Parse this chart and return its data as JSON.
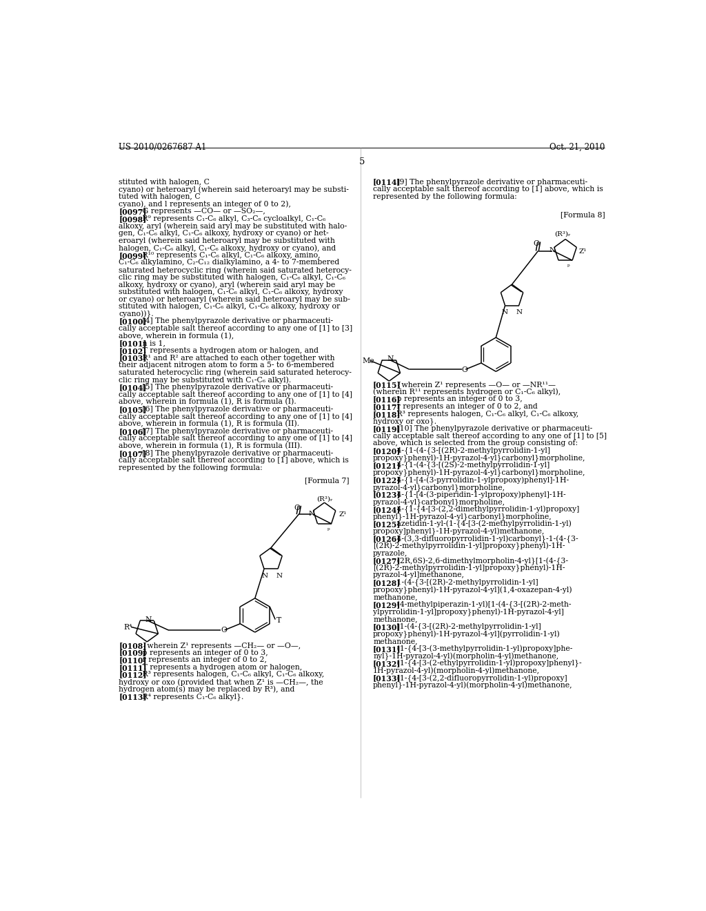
{
  "background_color": "#ffffff",
  "page_number": "5",
  "header_left": "US 2010/0267687 A1",
  "header_right": "Oct. 21, 2010",
  "left_column_lines": [
    {
      "text": "stituted with halogen, C",
      "bold": false,
      "indent": 0
    },
    {
      "text": "cyano) or heteroaryl (wherein said heteroaryl may be substi-",
      "bold": false,
      "indent": 0
    },
    {
      "text": "tuted with halogen, C",
      "bold": false,
      "indent": 0
    },
    {
      "text": "cyano), and l represents an integer of 0 to 2),",
      "bold": false,
      "indent": 0
    },
    {
      "text": "[0097]",
      "bold": true,
      "indent": 0,
      "rest": "   G represents —CO— or —SO₂—,"
    },
    {
      "text": "[0098]",
      "bold": true,
      "indent": 0,
      "rest": "   R⁹ represents C₁-C₆ alkyl, C₃-C₈ cycloalkyl, C₁-C₆"
    },
    {
      "text": "alkoxy, aryl (wherein said aryl may be substituted with halo-",
      "bold": false,
      "indent": 0
    },
    {
      "text": "gen, C₁-C₆ alkyl, C₁-C₆ alkoxy, hydroxy or cyano) or het-",
      "bold": false,
      "indent": 0
    },
    {
      "text": "eroaryl (wherein said heteroaryl may be substituted with",
      "bold": false,
      "indent": 0
    },
    {
      "text": "halogen, C₁-C₆ alkyl, C₁-C₆ alkoxy, hydroxy or cyano), and",
      "bold": false,
      "indent": 0
    },
    {
      "text": "[0099]",
      "bold": true,
      "indent": 0,
      "rest": "   R¹⁰ represents C₁-C₆ alkyl, C₁-C₆ alkoxy, amino,"
    },
    {
      "text": "C₁-C₆ alkylamino, C₂-C₁₂ dialkylamino, a 4- to 7-membered",
      "bold": false,
      "indent": 0
    },
    {
      "text": "saturated heterocyclic ring (wherein said saturated heterocy-",
      "bold": false,
      "indent": 0
    },
    {
      "text": "clic ring may be substituted with halogen, C₁-C₆ alkyl, C₁-C₆",
      "bold": false,
      "indent": 0
    },
    {
      "text": "alkoxy, hydroxy or cyano), aryl (wherein said aryl may be",
      "bold": false,
      "indent": 0
    },
    {
      "text": "substituted with halogen, C₁-C₆ alkyl, C₁-C₆ alkoxy, hydroxy",
      "bold": false,
      "indent": 0
    },
    {
      "text": "or cyano) or heteroaryl (wherein said heteroaryl may be sub-",
      "bold": false,
      "indent": 0
    },
    {
      "text": "stituted with halogen, C₁-C₆ alkyl, C₁-C₆ alkoxy, hydroxy or",
      "bold": false,
      "indent": 0
    },
    {
      "text": "cyano))}.",
      "bold": false,
      "indent": 0
    },
    {
      "text": "[0100]",
      "bold": true,
      "indent": 0,
      "rest": "   [4] The phenylpyrazole derivative or pharmaceuti-"
    },
    {
      "text": "cally acceptable salt thereof according to any one of [1] to [3]",
      "bold": false,
      "indent": 0
    },
    {
      "text": "above, wherein in formula (1),",
      "bold": false,
      "indent": 0
    },
    {
      "text": "[0101]",
      "bold": true,
      "indent": 0,
      "rest": "   n is 1,"
    },
    {
      "text": "[0102]",
      "bold": true,
      "indent": 0,
      "rest": "   T represents a hydrogen atom or halogen, and"
    },
    {
      "text": "[0103]",
      "bold": true,
      "indent": 0,
      "rest": "   R¹ and R² are attached to each other together with"
    },
    {
      "text": "their adjacent nitrogen atom to form a 5- to 6-membered",
      "bold": false,
      "indent": 0
    },
    {
      "text": "saturated heterocyclic ring (wherein said saturated heterocy-",
      "bold": false,
      "indent": 0
    },
    {
      "text": "clic ring may be substituted with C₁-C₆ alkyl).",
      "bold": false,
      "indent": 0
    },
    {
      "text": "[0104]",
      "bold": true,
      "indent": 0,
      "rest": "   [5] The phenylpyrazole derivative or pharmaceuti-"
    },
    {
      "text": "cally acceptable salt thereof according to any one of [1] to [4]",
      "bold": false,
      "indent": 0
    },
    {
      "text": "above, wherein in formula (1), R is formula (I).",
      "bold": false,
      "indent": 0
    },
    {
      "text": "[0105]",
      "bold": true,
      "indent": 0,
      "rest": "   [6] The phenylpyrazole derivative or pharmaceuti-"
    },
    {
      "text": "cally acceptable salt thereof according to any one of [1] to [4]",
      "bold": false,
      "indent": 0
    },
    {
      "text": "above, wherein in formula (1), R is formula (II).",
      "bold": false,
      "indent": 0
    },
    {
      "text": "[0106]",
      "bold": true,
      "indent": 0,
      "rest": "   [7] The phenylpyrazole derivative or pharmaceuti-"
    },
    {
      "text": "cally acceptable salt thereof according to any one of [1] to [4]",
      "bold": false,
      "indent": 0
    },
    {
      "text": "above, wherein in formula (1), R is formula (III).",
      "bold": false,
      "indent": 0
    },
    {
      "text": "[0107]",
      "bold": true,
      "indent": 0,
      "rest": "   [8] The phenylpyrazole derivative or pharmaceuti-"
    },
    {
      "text": "cally acceptable salt thereof according to [1] above, which is",
      "bold": false,
      "indent": 0
    },
    {
      "text": "represented by the following formula:",
      "bold": false,
      "indent": 0
    }
  ],
  "left_col_extra_lines": [
    {
      "text": "[0108]",
      "bold": true,
      "rest": "   {wherein Z¹ represents —CH₂— or —O—,"
    },
    {
      "text": "[0109]",
      "bold": true,
      "rest": "   p represents an integer of 0 to 3,"
    },
    {
      "text": "[0110]",
      "bold": true,
      "rest": "   r represents an integer of 0 to 2,"
    },
    {
      "text": "[0111]",
      "bold": true,
      "rest": "   T represents a hydrogen atom or halogen,"
    },
    {
      "text": "[0112]",
      "bold": true,
      "rest": "   R³ represents halogen, C₁-C₆ alkyl, C₁-C₆ alkoxy,"
    },
    {
      "text": "hydroxy or oxo (provided that when Z¹ is —CH₂—, the",
      "bold": false,
      "rest": ""
    },
    {
      "text": "hydrogen atom(s) may be replaced by R³), and",
      "bold": false,
      "rest": ""
    },
    {
      "text": "[0113]",
      "bold": true,
      "rest": "   R⁴ represents C₁-C₆ alkyl}."
    }
  ],
  "right_col_top_lines": [
    {
      "text": "[0114]",
      "bold": true,
      "rest": "   [9] The phenylpyrazole derivative or pharmaceuti-"
    },
    {
      "text": "cally acceptable salt thereof according to [1] above, which is",
      "bold": false,
      "rest": ""
    },
    {
      "text": "represented by the following formula:",
      "bold": false,
      "rest": ""
    }
  ],
  "right_col_bottom_lines": [
    {
      "text": "[0115]",
      "bold": true,
      "rest": "   {wherein Z¹ represents —O— or —NR¹¹—"
    },
    {
      "text": "(wherein R¹¹ represents hydrogen or C₁-C₆ alkyl),",
      "bold": false,
      "rest": ""
    },
    {
      "text": "[0116]",
      "bold": true,
      "rest": "   p represents an integer of 0 to 3,"
    },
    {
      "text": "[0117]",
      "bold": true,
      "rest": "   r represents an integer of 0 to 2, and"
    },
    {
      "text": "[0118]",
      "bold": true,
      "rest": "   R³ represents halogen, C₁-C₆ alkyl, C₁-C₆ alkoxy,"
    },
    {
      "text": "hydroxy or oxo}.",
      "bold": false,
      "rest": ""
    },
    {
      "text": "[0119]",
      "bold": true,
      "rest": "   [10] The phenylpyrazole derivative or pharmaceuti-"
    },
    {
      "text": "cally acceptable salt thereof according to any one of [1] to [5]",
      "bold": false,
      "rest": ""
    },
    {
      "text": "above, which is selected from the group consisting of:",
      "bold": false,
      "rest": ""
    },
    {
      "text": "[0120]",
      "bold": true,
      "rest": "   4-{1-(4-{3-[(2R)-2-methylpyrrolidin-1-yl]"
    },
    {
      "text": "propoxy}phenyl)-1H-pyrazol-4-yl}carbonyl}morpholine,",
      "bold": false,
      "rest": ""
    },
    {
      "text": "[0121]",
      "bold": true,
      "rest": "   4-{1-(4-{3-[(2S)-2-methylpyrrolidin-1-yl]"
    },
    {
      "text": "propoxy}phenyl)-1H-pyrazol-4-yl}carbonyl}morpholine,",
      "bold": false,
      "rest": ""
    },
    {
      "text": "[0122]",
      "bold": true,
      "rest": "   4-{1-[4-(3-pyrrolidin-1-ylpropoxy)phenyl]-1H-"
    },
    {
      "text": "pyrazol-4-yl}carbonyl}morpholine,",
      "bold": false,
      "rest": ""
    },
    {
      "text": "[0123]",
      "bold": true,
      "rest": "   4-{1-[4-(3-piperidin-1-ylpropoxy)phenyl]-1H-"
    },
    {
      "text": "pyrazol-4-yl}carbonyl}morpholine,",
      "bold": false,
      "rest": ""
    },
    {
      "text": "[0124]",
      "bold": true,
      "rest": "   4-{1-{4-[3-(2,2-dimethylpyrrolidin-1-yl)propoxy]"
    },
    {
      "text": "phenyl}-1H-pyrazol-4-yl}carbonyl}morpholine,",
      "bold": false,
      "rest": ""
    },
    {
      "text": "[0125]",
      "bold": true,
      "rest": "   azetidin-1-yl-(1-{4-[3-(2-methylpyrrolidin-1-yl)"
    },
    {
      "text": "propoxy]phenyl}-1H-pyrazol-4-yl)methanone,",
      "bold": false,
      "rest": ""
    },
    {
      "text": "[0126]",
      "bold": true,
      "rest": "   4-(3,3-difluoropyrrolidin-1-yl)carbonyl}-1-(4-{3-"
    },
    {
      "text": "[(2R)-2-methylpyrrolidin-1-yl]propoxy}phenyl)-1H-",
      "bold": false,
      "rest": ""
    },
    {
      "text": "pyrazole,",
      "bold": false,
      "rest": ""
    },
    {
      "text": "[0127]",
      "bold": true,
      "rest": "   (2R,6S)-2,6-dimethylmorpholin-4-yl}[1-(4-{3-"
    },
    {
      "text": "[(2R)-2-methylpyrrolidin-1-yl]propoxy}phenyl)-1H-",
      "bold": false,
      "rest": ""
    },
    {
      "text": "pyrazol-4-yl]methanone,",
      "bold": false,
      "rest": ""
    },
    {
      "text": "[0128]",
      "bold": true,
      "rest": "   1-(4-{3-[(2R)-2-methylpyrrolidin-1-yl]"
    },
    {
      "text": "propoxy}phenyl)-1H-pyrazol-4-yl](1,4-oxazepan-4-yl)",
      "bold": false,
      "rest": ""
    },
    {
      "text": "methanone,",
      "bold": false,
      "rest": ""
    },
    {
      "text": "[0129]",
      "bold": true,
      "rest": "   (4-methylpiperazin-1-yl)[1-(4-{3-[(2R)-2-meth-"
    },
    {
      "text": "ylpyrrolidin-1-yl]propoxy}phenyl)-1H-pyrazol-4-yl]",
      "bold": false,
      "rest": ""
    },
    {
      "text": "methanone,",
      "bold": false,
      "rest": ""
    },
    {
      "text": "[0130]",
      "bold": true,
      "rest": "   [1-(4-{3-[(2R)-2-methylpyrrolidin-1-yl]"
    },
    {
      "text": "propoxy}phenyl)-1H-pyrazol-4-yl](pyrrolidin-1-yl)",
      "bold": false,
      "rest": ""
    },
    {
      "text": "methanone,",
      "bold": false,
      "rest": ""
    },
    {
      "text": "[0131]",
      "bold": true,
      "rest": "   (1-{4-[3-(3-methylpyrrolidin-1-yl)propoxy]phe-"
    },
    {
      "text": "nyl}-1H-pyrazol-4-yl)(morpholin-4-yl)methanone,",
      "bold": false,
      "rest": ""
    },
    {
      "text": "[0132]",
      "bold": true,
      "rest": "   (1-{4-[3-(2-ethylpyrrolidin-1-yl)propoxy]phenyl}-"
    },
    {
      "text": "1H-pyrazol-4-yl)(morpholin-4-yl)methanone,",
      "bold": false,
      "rest": ""
    },
    {
      "text": "[0133]",
      "bold": true,
      "rest": "   (1-{4-[3-(2,2-difluoropyrrolidin-1-yl)propoxy]"
    },
    {
      "text": "phenyl}-1H-pyrazol-4-yl)(morpholin-4-yl)methanone,",
      "bold": false,
      "rest": ""
    }
  ]
}
